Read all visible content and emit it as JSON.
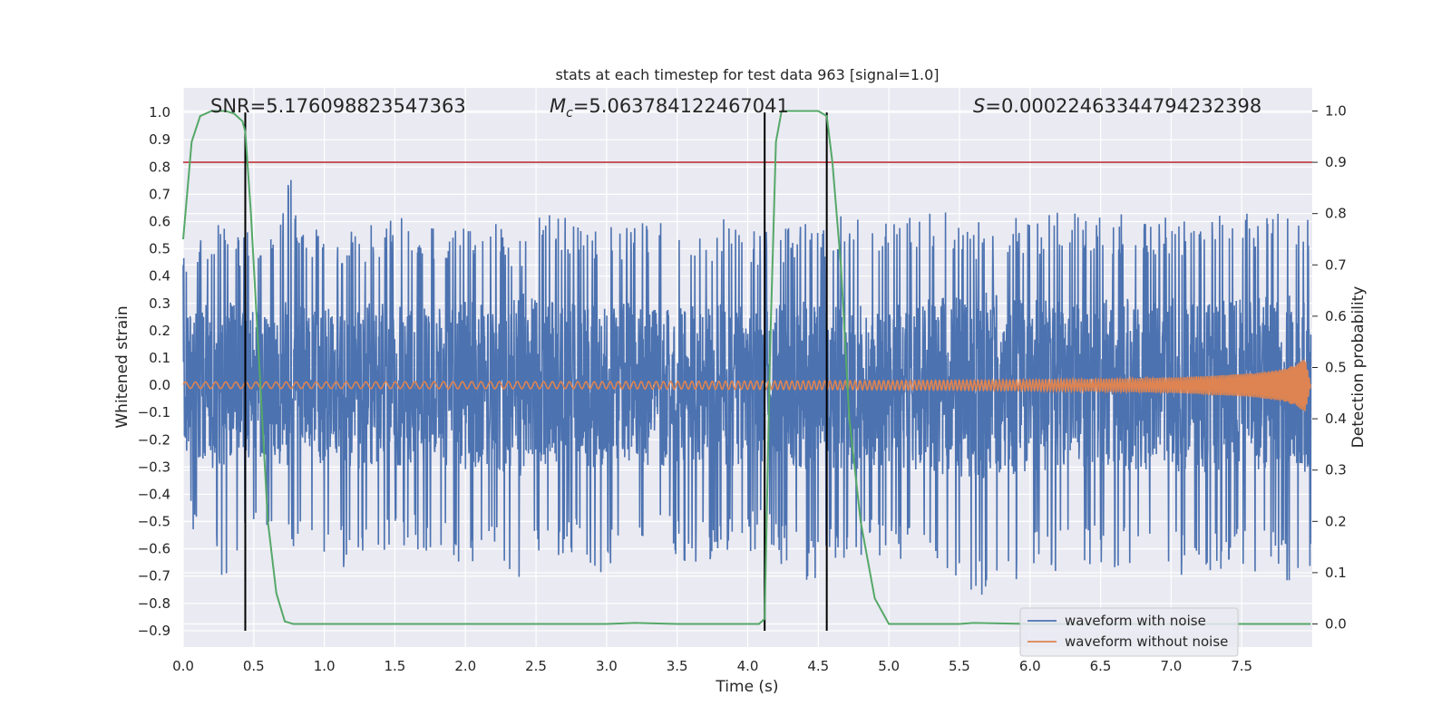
{
  "chart_data": {
    "type": "line",
    "title": "stats at each timestep for test data 963 [signal=1.0]",
    "xlabel": "Time (s)",
    "ylabel": "Whitened strain",
    "y2label": "Detection probability",
    "xlim": [
      0.0,
      8.0
    ],
    "ylim": [
      -0.96,
      1.09
    ],
    "y2lim": [
      -0.045,
      1.045
    ],
    "xticks": [
      "0.0",
      "0.5",
      "1.0",
      "1.5",
      "2.0",
      "2.5",
      "3.0",
      "3.5",
      "4.0",
      "4.5",
      "5.0",
      "5.5",
      "6.0",
      "6.5",
      "7.0",
      "7.5"
    ],
    "yticks": [
      "1.0",
      "0.9",
      "0.8",
      "0.7",
      "0.6",
      "0.5",
      "0.4",
      "0.3",
      "0.2",
      "0.1",
      "0.0",
      "−0.1",
      "−0.2",
      "−0.3",
      "−0.4",
      "−0.5",
      "−0.6",
      "−0.7",
      "−0.8",
      "−0.9"
    ],
    "y2ticks": [
      "1.0",
      "0.9",
      "0.8",
      "0.7",
      "0.6",
      "0.5",
      "0.4",
      "0.3",
      "0.2",
      "0.1",
      "0.0"
    ],
    "grid": true,
    "legend_position": "lower-right",
    "annotations": {
      "snr": "SNR=5.176098823547363",
      "mc_symbol": "M",
      "mc_sub": "c",
      "mc_value": "=5.063784122467041",
      "s_symbol": "S",
      "s_value": "=0.00022463344794232398"
    },
    "series": [
      {
        "name": "waveform with noise",
        "color": "#4c72b0",
        "description_envelope": {
          "x": [
            0.0,
            0.1,
            0.2,
            0.3,
            0.4,
            0.5,
            0.6,
            0.7,
            0.77,
            0.8,
            0.9,
            1.0,
            1.2,
            1.4,
            1.6,
            1.8,
            2.0,
            2.2,
            2.36,
            2.5,
            2.8,
            3.0,
            3.3,
            3.6,
            3.9,
            4.1,
            4.4,
            4.7,
            5.0,
            5.3,
            5.7,
            6.0,
            6.4,
            6.8,
            7.2,
            7.5,
            7.8,
            7.99
          ],
          "upper": [
            0.48,
            0.55,
            0.6,
            0.62,
            0.55,
            0.58,
            0.52,
            0.6,
            1.0,
            0.68,
            0.55,
            0.6,
            0.58,
            0.6,
            0.65,
            0.58,
            0.62,
            0.6,
            0.55,
            0.65,
            0.6,
            0.58,
            0.64,
            0.58,
            0.62,
            0.56,
            0.6,
            0.64,
            0.6,
            0.66,
            0.6,
            0.62,
            0.65,
            0.62,
            0.64,
            0.66,
            0.68,
            0.6
          ],
          "lower": [
            -0.5,
            -0.6,
            -0.68,
            -0.72,
            -0.62,
            -0.6,
            -0.58,
            -0.62,
            -0.6,
            -0.58,
            -0.6,
            -0.62,
            -0.7,
            -0.66,
            -0.6,
            -0.62,
            -0.68,
            -0.64,
            -0.9,
            -0.66,
            -0.65,
            -0.7,
            -0.6,
            -0.66,
            -0.62,
            -0.6,
            -0.74,
            -0.66,
            -0.62,
            -0.7,
            -0.84,
            -0.7,
            -0.68,
            -0.7,
            -0.7,
            -0.68,
            -0.72,
            -0.72
          ]
        }
      },
      {
        "name": "waveform without noise",
        "color": "#dd8452",
        "description_envelope": {
          "x": [
            0.0,
            1.0,
            2.0,
            3.0,
            4.0,
            5.0,
            6.0,
            6.5,
            7.0,
            7.3,
            7.6,
            7.8,
            7.9,
            7.95,
            7.99
          ],
          "amplitude": [
            0.012,
            0.012,
            0.013,
            0.013,
            0.015,
            0.017,
            0.02,
            0.023,
            0.028,
            0.035,
            0.045,
            0.06,
            0.08,
            0.1,
            0.0
          ]
        }
      },
      {
        "name": "detection probability",
        "color": "#55a868",
        "axis": "right",
        "x": [
          0.0,
          0.06,
          0.12,
          0.2,
          0.3,
          0.36,
          0.42,
          0.44,
          0.48,
          0.54,
          0.6,
          0.66,
          0.72,
          0.78,
          1.0,
          1.5,
          2.0,
          2.5,
          3.0,
          3.2,
          3.5,
          4.0,
          4.08,
          4.12,
          4.16,
          4.2,
          4.24,
          4.3,
          4.4,
          4.5,
          4.56,
          4.6,
          4.66,
          4.72,
          4.8,
          4.9,
          5.0,
          5.5,
          5.6,
          6.0,
          6.5,
          7.0,
          7.5,
          7.99
        ],
        "y": [
          0.75,
          0.94,
          0.99,
          1.0,
          1.0,
          0.995,
          0.98,
          0.96,
          0.8,
          0.5,
          0.2,
          0.06,
          0.005,
          0.0,
          0.0,
          0.0,
          0.0,
          0.0,
          0.0,
          0.002,
          0.0,
          0.0,
          0.0,
          0.01,
          0.55,
          0.94,
          1.0,
          1.0,
          1.0,
          1.0,
          0.99,
          0.9,
          0.7,
          0.4,
          0.2,
          0.05,
          0.0,
          0.0,
          0.002,
          0.0,
          0.0,
          0.0,
          0.0,
          0.0
        ]
      }
    ],
    "threshold_line": {
      "y2": 0.9,
      "color": "#c44e52"
    },
    "event_lines": {
      "x": [
        0.44,
        4.12,
        4.56
      ],
      "y_range": [
        -0.9,
        1.0
      ],
      "color": "#000000"
    }
  }
}
